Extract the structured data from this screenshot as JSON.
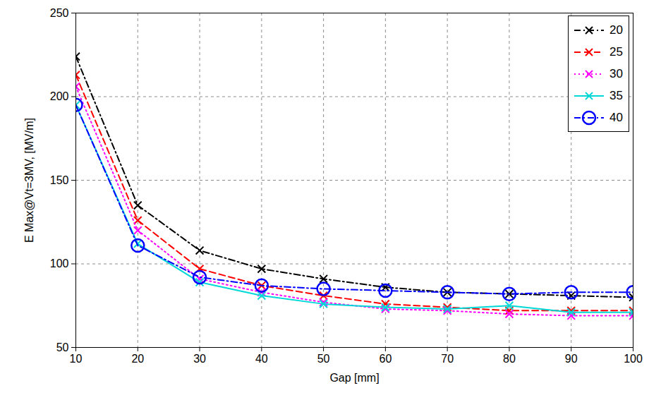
{
  "chart_data": {
    "type": "line",
    "x_label": "Gap [mm]",
    "y_label": "E Max@Vt=3MV, [MV/m]",
    "x": [
      10,
      20,
      30,
      40,
      50,
      60,
      70,
      80,
      90,
      100
    ],
    "xlim": [
      10,
      100
    ],
    "xticks": [
      10,
      20,
      30,
      40,
      50,
      60,
      70,
      80,
      90,
      100
    ],
    "ylim": [
      50,
      250
    ],
    "yticks": [
      50,
      100,
      150,
      200,
      250
    ],
    "grid": true,
    "legend": "top-right",
    "series": [
      {
        "name": "20",
        "color": "#000000",
        "marker": "x",
        "line_style": "dashdot",
        "values": [
          224,
          135,
          108,
          97,
          91,
          86,
          83,
          82,
          81,
          80
        ]
      },
      {
        "name": "25",
        "color": "#ff0000",
        "marker": "x",
        "line_style": "dashed",
        "values": [
          213,
          126,
          97,
          87,
          81,
          76,
          74,
          72,
          72,
          72
        ]
      },
      {
        "name": "30",
        "color": "#ff00ff",
        "marker": "x",
        "line_style": "dotted",
        "values": [
          206,
          120,
          91,
          83,
          77,
          73,
          72,
          70,
          69,
          69
        ]
      },
      {
        "name": "35",
        "color": "#00d8d8",
        "marker": "x",
        "line_style": "solid",
        "values": [
          195,
          112,
          89,
          81,
          76,
          74,
          73,
          75,
          71,
          71
        ]
      },
      {
        "name": "40",
        "color": "#0000ff",
        "marker": "circle",
        "line_style": "dashdot",
        "values": [
          195,
          111,
          92,
          87,
          85,
          84,
          83,
          82,
          83,
          83
        ]
      }
    ]
  }
}
